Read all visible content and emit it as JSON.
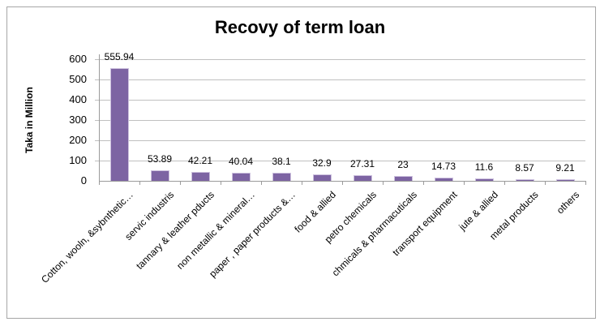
{
  "figure": {
    "background": "#FFFFFF"
  },
  "chart_data": {
    "type": "bar",
    "title": "Recovy of term loan",
    "xlabel": "",
    "ylabel": "Taka in Million",
    "categories": [
      "Cotton, wooln, &sybnthetic…",
      "servic industris",
      "tannary & leather pducts",
      "non metallic & mineral…",
      "paper , paper products &…",
      "food & allied",
      "petro chemicals",
      "chmicals & pharmacuticals",
      "transport equipment",
      "jute & allied",
      "metal products",
      "others"
    ],
    "values": [
      555.94,
      53.89,
      42.21,
      40.04,
      38.1,
      32.9,
      27.31,
      23,
      14.73,
      11.6,
      8.57,
      9.21
    ],
    "value_labels": [
      "555.94",
      "53.89",
      "42.21",
      "40.04",
      "38.1",
      "32.9",
      "27.31",
      "23",
      "14.73",
      "11.6",
      "8.57",
      "9.21"
    ],
    "ylim": [
      0,
      600
    ],
    "yticks": [
      0,
      100,
      200,
      300,
      400,
      500,
      600
    ],
    "grid": "horizontal",
    "legend": "none",
    "colors": {
      "bar_fill": "#7D64A3",
      "bar_border": "#CDC1DE",
      "gridline": "#C0C0C0",
      "axis_line": "#9B9B9B",
      "text": "#000000",
      "figure_border": "#A6A6A6",
      "background": "#FFFFFF"
    }
  }
}
